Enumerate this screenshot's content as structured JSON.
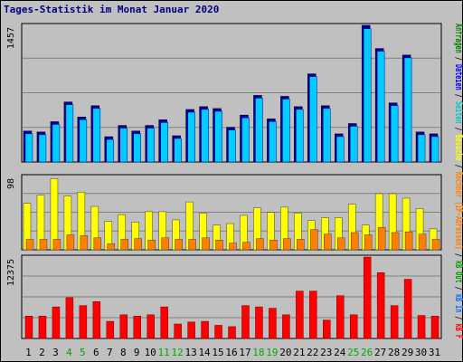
{
  "title": "Tages-Statistik im Monat Januar 2020",
  "chart_data": {
    "type": "bar",
    "categories": [
      "1",
      "2",
      "3",
      "4",
      "5",
      "6",
      "7",
      "8",
      "9",
      "10",
      "11",
      "12",
      "13",
      "14",
      "15",
      "16",
      "17",
      "18",
      "19",
      "20",
      "21",
      "22",
      "23",
      "24",
      "25",
      "26",
      "27",
      "28",
      "29",
      "30",
      "31"
    ],
    "weekend_days": [
      "4",
      "5",
      "11",
      "12",
      "18",
      "19",
      "25",
      "26"
    ],
    "panels": [
      {
        "scale_label": "1457",
        "ymax": 1457,
        "series": [
          {
            "name": "Anfragen",
            "color": "#008000",
            "values": [
              330,
              320,
              430,
              640,
              480,
              600,
              270,
              390,
              330,
              390,
              450,
              280,
              560,
              590,
              570,
              370,
              500,
              710,
              460,
              700,
              590,
              940,
              600,
              300,
              410,
              1457,
              1210,
              630,
              1140,
              320,
              300
            ]
          },
          {
            "name": "Dateien",
            "color": "#0000ff",
            "values": [
              320,
              310,
              420,
              630,
              470,
              590,
              260,
              380,
              320,
              380,
              440,
              270,
              550,
              580,
              560,
              360,
              490,
              700,
              450,
              690,
              580,
              930,
              590,
              290,
              400,
              1440,
              1200,
              620,
              1130,
              310,
              290
            ]
          }
        ]
      },
      {
        "scale_label": "98",
        "ymax": 98,
        "series": [
          {
            "name": "Rechner",
            "color": "#ff8000",
            "values": [
              14,
              14,
              14,
              20,
              19,
              16,
              8,
              14,
              15,
              13,
              16,
              14,
              14,
              16,
              13,
              9,
              10,
              15,
              13,
              15,
              14,
              27,
              21,
              16,
              23,
              20,
              30,
              23,
              24,
              21,
              14
            ]
          },
          {
            "name": "Besuche",
            "color": "#ffff00",
            "values": [
              62,
              73,
              95,
              72,
              77,
              58,
              38,
              47,
              37,
              51,
              51,
              40,
              64,
              49,
              33,
              35,
              46,
              56,
              50,
              57,
              49,
              39,
              43,
              43,
              61,
              33,
              75,
              75,
              69,
              55,
              28
            ]
          }
        ]
      },
      {
        "scale_label": "12375",
        "ymax": 12375,
        "series": [
          {
            "name": "kB F",
            "color": "#ff0000",
            "values": [
              3400,
              3400,
              4800,
              6200,
              5000,
              5600,
              2600,
              3600,
              3400,
              3600,
              4800,
              2200,
              2500,
              2600,
              2000,
              1800,
              5000,
              4800,
              4600,
              3600,
              7200,
              7200,
              2800,
              6500,
              3600,
              12375,
              10000,
              5000,
              9000,
              3500,
              3400
            ]
          }
        ]
      }
    ],
    "legend_labels": [
      {
        "text": "Anfragen",
        "color": "#008000"
      },
      {
        "text": "Dateien",
        "color": "#0000ff"
      },
      {
        "text": "Seiten",
        "color": "#00c8c8"
      },
      {
        "text": "Besuche",
        "color": "#ffff00"
      },
      {
        "text": "Rechner (IP-Adressen)",
        "color": "#ff8000"
      },
      {
        "text": "kB Out",
        "color": "#00a000"
      },
      {
        "text": "kB In",
        "color": "#0070ff"
      },
      {
        "text": "kB F",
        "color": "#ff0000"
      }
    ],
    "separator": " / ",
    "colors": {
      "background": "#c0c0c0",
      "plot_background": "#c0c0c0",
      "grid": "#808080",
      "day_label": "#000000",
      "weekend_label": "#00aa00"
    }
  }
}
